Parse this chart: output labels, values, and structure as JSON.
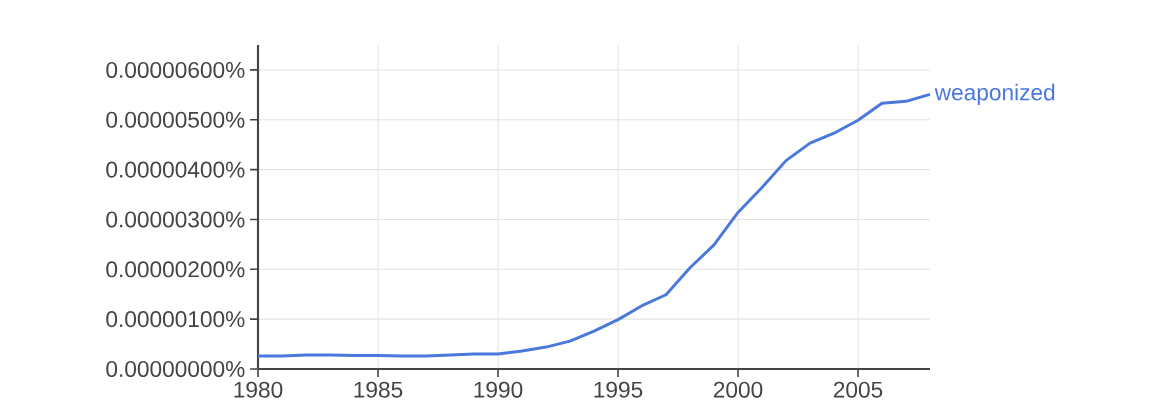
{
  "chart_data": {
    "type": "line",
    "x": [
      1980,
      1981,
      1982,
      1983,
      1984,
      1985,
      1986,
      1987,
      1988,
      1989,
      1990,
      1991,
      1992,
      1993,
      1994,
      1995,
      1996,
      1997,
      1998,
      1999,
      2000,
      2001,
      2002,
      2003,
      2004,
      2005,
      2006,
      2007,
      2008
    ],
    "series": [
      {
        "name": "weaponized",
        "color": "#4a78dc",
        "values": [
          2.6e-07,
          2.6e-07,
          2.8e-07,
          2.8e-07,
          2.7e-07,
          2.7e-07,
          2.6e-07,
          2.6e-07,
          2.8e-07,
          3e-07,
          3e-07,
          3.6e-07,
          4.4e-07,
          5.6e-07,
          7.6e-07,
          9.9e-07,
          1.27e-06,
          1.49e-06,
          2.03e-06,
          2.49e-06,
          3.14e-06,
          3.64e-06,
          4.18e-06,
          4.53e-06,
          4.73e-06,
          4.99e-06,
          5.33e-06,
          5.37e-06,
          5.51e-06
        ]
      }
    ],
    "xlim": [
      1980,
      2008
    ],
    "xticks": [
      1980,
      1985,
      1990,
      1995,
      2000,
      2005
    ],
    "ylim": [
      0,
      6.5e-06
    ],
    "yticks": [
      {
        "value": 0,
        "label": "0.00000000%"
      },
      {
        "value": 1e-06,
        "label": "0.00000100%"
      },
      {
        "value": 2e-06,
        "label": "0.00000200%"
      },
      {
        "value": 3e-06,
        "label": "0.00000300%"
      },
      {
        "value": 4e-06,
        "label": "0.00000400%"
      },
      {
        "value": 5e-06,
        "label": "0.00000500%"
      },
      {
        "value": 6e-06,
        "label": "0.00000600%"
      }
    ],
    "grid": true,
    "line_style": "solid",
    "marker": "none"
  }
}
